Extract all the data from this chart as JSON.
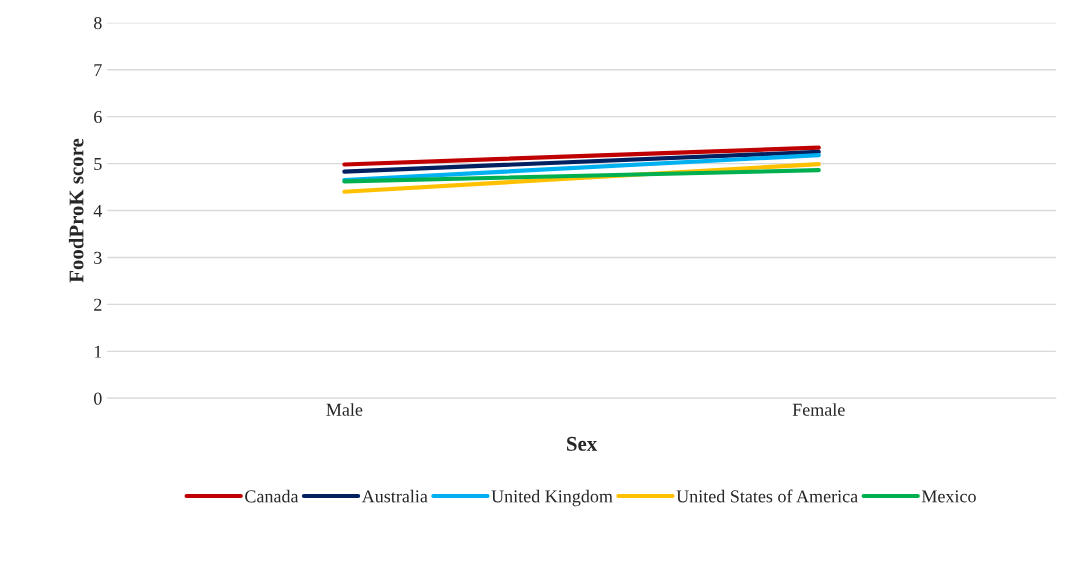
{
  "chart_data": {
    "type": "line",
    "xlabel": "Sex",
    "ylabel": "FoodProK score",
    "categories": [
      "Male",
      "Female"
    ],
    "series": [
      {
        "name": "Canada",
        "color": "#c00000",
        "values": [
          4.98,
          5.34
        ]
      },
      {
        "name": "Australia",
        "color": "#002060",
        "values": [
          4.83,
          5.25
        ]
      },
      {
        "name": "United Kingdom",
        "color": "#00b0f0",
        "values": [
          4.65,
          5.18
        ]
      },
      {
        "name": "United States of America",
        "color": "#ffc000",
        "values": [
          4.4,
          4.99
        ]
      },
      {
        "name": "Mexico",
        "color": "#00b050",
        "values": [
          4.62,
          4.86
        ]
      }
    ],
    "ylim": [
      0,
      8
    ],
    "yticks": [
      0,
      1,
      2,
      3,
      4,
      5,
      6,
      7,
      8
    ],
    "grid": "y",
    "legend": "bottom",
    "marker": "none",
    "line_style": "solid"
  }
}
